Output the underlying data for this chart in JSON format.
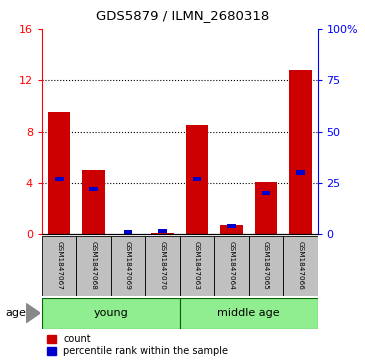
{
  "title": "GDS5879 / ILMN_2680318",
  "samples": [
    "GSM1847067",
    "GSM1847068",
    "GSM1847069",
    "GSM1847070",
    "GSM1847063",
    "GSM1847064",
    "GSM1847065",
    "GSM1847066"
  ],
  "count_values": [
    9.5,
    5.0,
    0.0,
    0.05,
    8.5,
    0.75,
    4.1,
    12.8
  ],
  "percentile_values": [
    27,
    22,
    0,
    1.5,
    27,
    4,
    20,
    30
  ],
  "groups": [
    {
      "label": "young",
      "start": 0,
      "end": 4
    },
    {
      "label": "middle age",
      "start": 4,
      "end": 8
    }
  ],
  "group_color": "#90EE90",
  "bar_color_red": "#CC0000",
  "bar_color_blue": "#0000CC",
  "bar_width": 0.65,
  "blue_bar_width": 0.25,
  "blue_bar_height": 0.35,
  "ylim_left": [
    0,
    16
  ],
  "ylim_right": [
    0,
    100
  ],
  "yticks_left": [
    0,
    4,
    8,
    12,
    16
  ],
  "yticks_right": [
    0,
    25,
    50,
    75,
    100
  ],
  "ytick_labels_right": [
    "0",
    "25",
    "50",
    "75",
    "100%"
  ],
  "grid_yticks": [
    4,
    8,
    12
  ],
  "background_color": "#ffffff",
  "legend_count_label": "count",
  "legend_percentile_label": "percentile rank within the sample",
  "age_label": "age",
  "sample_box_color": "#C0C0C0"
}
